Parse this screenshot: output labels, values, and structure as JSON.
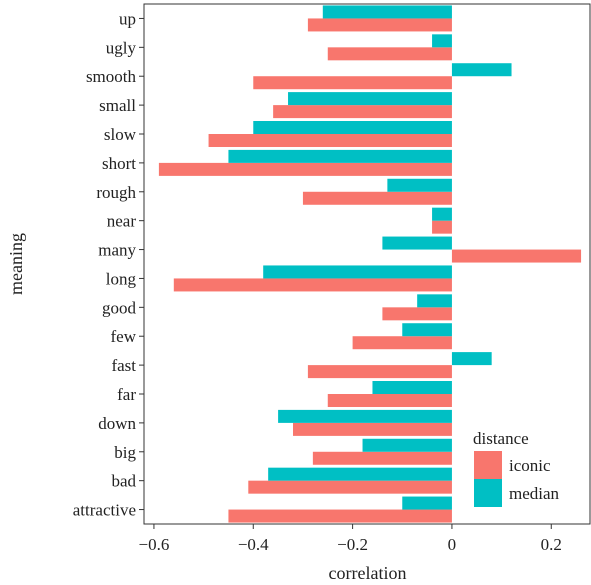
{
  "chart_data": {
    "type": "bar",
    "orientation": "horizontal",
    "xlabel": "correlation",
    "ylabel": "meaning",
    "xlim": [
      -0.62,
      0.28
    ],
    "xticks": [
      -0.6,
      -0.4,
      -0.2,
      0,
      0.2
    ],
    "xtick_labels": [
      "−0.6",
      "−0.4",
      "−0.2",
      "0",
      "0.2"
    ],
    "grid": false,
    "legend_position": "bottom-right",
    "legend_title": "distance",
    "categories": [
      "up",
      "ugly",
      "smooth",
      "small",
      "slow",
      "short",
      "rough",
      "near",
      "many",
      "long",
      "good",
      "few",
      "fast",
      "far",
      "down",
      "big",
      "bad",
      "attractive"
    ],
    "series": [
      {
        "name": "iconic",
        "color": "#F8766D",
        "values": [
          -0.29,
          -0.25,
          -0.4,
          -0.36,
          -0.49,
          -0.59,
          -0.3,
          -0.04,
          0.26,
          -0.56,
          -0.14,
          -0.2,
          -0.29,
          -0.25,
          -0.32,
          -0.28,
          -0.41,
          -0.45
        ]
      },
      {
        "name": "median",
        "color": "#00BFC4",
        "values": [
          -0.26,
          -0.04,
          0.12,
          -0.33,
          -0.4,
          -0.45,
          -0.13,
          -0.04,
          -0.14,
          -0.38,
          -0.07,
          -0.1,
          0.08,
          -0.16,
          -0.35,
          -0.18,
          -0.37,
          -0.1
        ]
      }
    ]
  }
}
